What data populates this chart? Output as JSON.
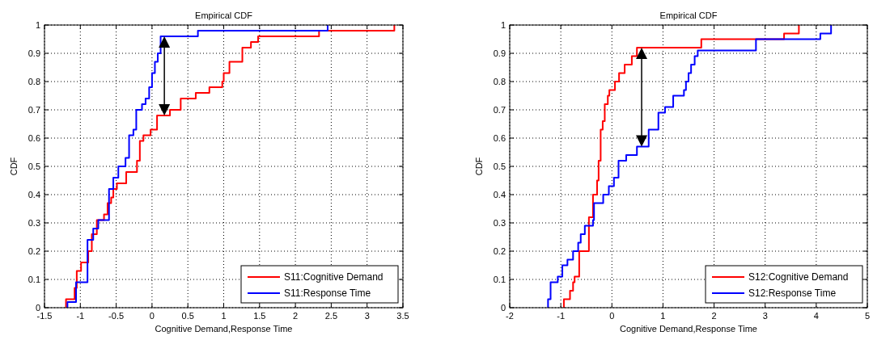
{
  "chart_data": [
    {
      "type": "step",
      "title": "Empirical CDF",
      "xlabel": "Cognitive Demand,Response Time",
      "ylabel": "CDF",
      "xlim": [
        -1.5,
        3.5
      ],
      "xticks": [
        -1.5,
        -1,
        -0.5,
        0,
        0.5,
        1,
        1.5,
        2,
        2.5,
        3,
        3.5
      ],
      "ylim": [
        0,
        1
      ],
      "yticks": [
        0,
        0.1,
        0.2,
        0.3,
        0.4,
        0.5,
        0.6,
        0.7,
        0.8,
        0.9,
        1
      ],
      "grid": true,
      "legend": "bottom right",
      "line_style": "solid",
      "series": [
        {
          "name": "S11:Cognitive Demand",
          "color": "#ff0000",
          "x": [
            -1.2,
            -1.2,
            -1.08,
            -1.05,
            -0.99,
            -0.89,
            -0.84,
            -0.77,
            -0.67,
            -0.62,
            -0.57,
            -0.54,
            -0.49,
            -0.36,
            -0.21,
            -0.17,
            -0.12,
            -0.02,
            0.07,
            0.25,
            0.4,
            0.61,
            0.8,
            0.98,
            1.0,
            1.08,
            1.26,
            1.38,
            1.48,
            2.33,
            3.38
          ],
          "values": [
            0,
            0.03,
            0.07,
            0.13,
            0.16,
            0.2,
            0.26,
            0.31,
            0.33,
            0.37,
            0.39,
            0.42,
            0.44,
            0.48,
            0.52,
            0.59,
            0.61,
            0.63,
            0.68,
            0.7,
            0.74,
            0.76,
            0.78,
            0.8,
            0.83,
            0.87,
            0.92,
            0.94,
            0.96,
            0.98,
            1
          ]
        },
        {
          "name": "S11:Response Time",
          "color": "#0000ff",
          "x": [
            -1.18,
            -1.18,
            -1.06,
            -0.9,
            -0.82,
            -0.75,
            -0.6,
            -0.54,
            -0.47,
            -0.37,
            -0.32,
            -0.26,
            -0.22,
            -0.14,
            -0.09,
            -0.04,
            0.0,
            0.04,
            0.08,
            0.12,
            0.64,
            2.45
          ],
          "values": [
            0,
            0.02,
            0.09,
            0.24,
            0.28,
            0.31,
            0.42,
            0.46,
            0.5,
            0.53,
            0.61,
            0.63,
            0.7,
            0.72,
            0.74,
            0.78,
            0.83,
            0.87,
            0.9,
            0.96,
            0.98,
            1
          ]
        }
      ]
    },
    {
      "type": "step",
      "title": "Empirical CDF",
      "xlabel": "Cognitive Demand,Response Time",
      "ylabel": "CDF",
      "xlim": [
        -2,
        5
      ],
      "xticks": [
        -2,
        -1,
        0,
        1,
        2,
        3,
        4,
        5
      ],
      "ylim": [
        0,
        1
      ],
      "yticks": [
        0,
        0.1,
        0.2,
        0.3,
        0.4,
        0.5,
        0.6,
        0.7,
        0.8,
        0.9,
        1
      ],
      "grid": true,
      "legend": "bottom right",
      "line_style": "solid",
      "series": [
        {
          "name": "S12:Cognitive Demand",
          "color": "#ff0000",
          "x": [
            -0.94,
            -0.94,
            -0.82,
            -0.76,
            -0.73,
            -0.64,
            -0.45,
            -0.37,
            -0.29,
            -0.26,
            -0.22,
            -0.18,
            -0.14,
            -0.08,
            -0.05,
            0.06,
            0.14,
            0.25,
            0.39,
            0.49,
            1.75,
            3.37,
            3.66
          ],
          "values": [
            0,
            0.03,
            0.06,
            0.09,
            0.11,
            0.2,
            0.32,
            0.4,
            0.45,
            0.52,
            0.63,
            0.66,
            0.72,
            0.75,
            0.77,
            0.8,
            0.83,
            0.86,
            0.89,
            0.92,
            0.95,
            0.97,
            1
          ]
        },
        {
          "name": "S12:Response Time",
          "color": "#0000ff",
          "x": [
            -1.25,
            -1.25,
            -1.2,
            -1.06,
            -0.97,
            -0.87,
            -0.76,
            -0.66,
            -0.61,
            -0.53,
            -0.37,
            -0.35,
            -0.17,
            -0.06,
            0.04,
            0.13,
            0.28,
            0.49,
            0.72,
            0.91,
            1.04,
            1.2,
            1.41,
            1.45,
            1.5,
            1.55,
            1.62,
            1.68,
            2.82,
            4.08,
            4.29
          ],
          "values": [
            0,
            0.03,
            0.09,
            0.11,
            0.15,
            0.17,
            0.2,
            0.23,
            0.26,
            0.29,
            0.31,
            0.37,
            0.4,
            0.43,
            0.46,
            0.52,
            0.54,
            0.57,
            0.63,
            0.69,
            0.71,
            0.75,
            0.77,
            0.8,
            0.83,
            0.86,
            0.89,
            0.91,
            0.95,
            0.97,
            1
          ]
        }
      ]
    }
  ]
}
